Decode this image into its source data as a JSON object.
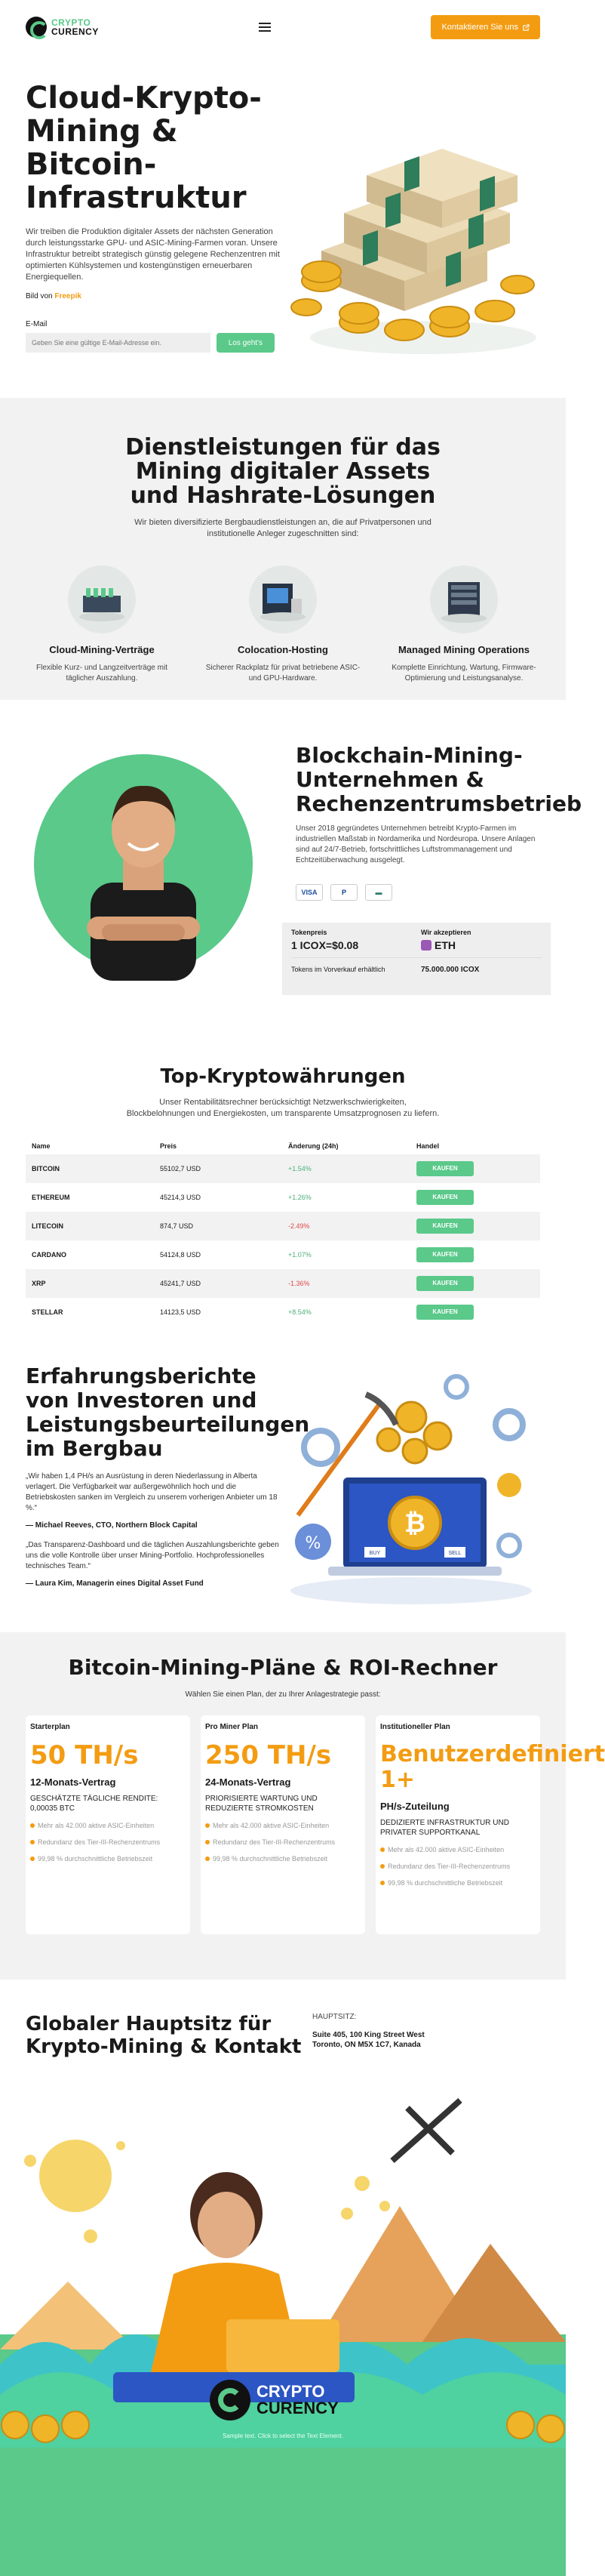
{
  "header": {
    "logo_line1": "CRYPTO",
    "logo_line2": "CURENCY",
    "cta_label": "Kontaktieren Sie uns",
    "cta_icon": "external-link-icon"
  },
  "hero": {
    "title": "Cloud-Krypto-Mining & Bitcoin-Infrastruktur",
    "description": "Wir treiben die Produktion digitaler Assets der nächsten Generation durch leistungsstarke GPU- und ASIC-Mining-Farmen voran. Unsere Infrastruktur betreibt strategisch günstig gelegene Rechenzentren mit optimierten Kühlsystemen und kostengünstigen erneuerbaren Energiequellen.",
    "credit_prefix": "Bild von ",
    "credit_link": "Freepik",
    "email_label": "E-Mail",
    "email_placeholder": "Geben Sie eine gültige E-Mail-Adresse ein.",
    "submit_label": "Los geht's"
  },
  "services": {
    "title": "Dienstleistungen für das Mining digitaler Assets und Hashrate-Lösungen",
    "subtitle": "Wir bieten diversifizierte Bergbaudienstleistungen an, die auf Privatpersonen und institutionelle Anleger zugeschnitten sind:",
    "items": [
      {
        "title": "Cloud-Mining-Verträge",
        "text": "Flexible Kurz- und Langzeitverträge mit täglicher Auszahlung."
      },
      {
        "title": "Colocation-Hosting",
        "text": "Sicherer Rackplatz für privat betriebene ASIC- und GPU-Hardware."
      },
      {
        "title": "Managed Mining Operations",
        "text": "Komplette Einrichtung, Wartung, Firmware-Optimierung und Leistungsanalyse."
      }
    ]
  },
  "blockchain": {
    "title": "Blockchain-Mining-Unternehmen & Rechenzentrumsbetrieb",
    "text": "Unser 2018 gegründetes Unternehmen betreibt Krypto-Farmen im industriellen Maßstab in Nordamerika und Nordeuropa. Unsere Anlagen sind auf 24/7-Betrieb, fortschrittliches Luftstrommanagement und Echtzeitüberwachung ausgelegt.",
    "payments": [
      "VISA",
      "P",
      "▬"
    ],
    "token_price_label": "Tokenpreis",
    "token_price_value": "1 ICOX=$0.08",
    "accepted_label": "Wir akzeptieren",
    "accepted_value": "ETH",
    "presale_label": "Tokens im Vorverkauf erhältlich",
    "presale_value": "75.000.000 ICOX"
  },
  "crypto": {
    "title": "Top-Kryptowährungen",
    "subtitle": "Unser Rentabilitätsrechner berücksichtigt Netzwerkschwierigkeiten, Blockbelohnungen und Energiekosten, um transparente Umsatzprognosen zu liefern.",
    "columns": [
      "Name",
      "Preis",
      "Änderung (24h)",
      "Handel"
    ],
    "buy_label": "KAUFEN",
    "rows": [
      {
        "name": "BITCOIN",
        "price": "55102,7 USD",
        "change": "+1.54%",
        "dir": "pos"
      },
      {
        "name": "ETHEREUM",
        "price": "45214,3 USD",
        "change": "+1.26%",
        "dir": "pos"
      },
      {
        "name": "LITECOIN",
        "price": "874,7 USD",
        "change": "-2.49%",
        "dir": "neg"
      },
      {
        "name": "CARDANO",
        "price": "54124,8 USD",
        "change": "+1.07%",
        "dir": "pos"
      },
      {
        "name": "XRP",
        "price": "45241,7 USD",
        "change": "-1.36%",
        "dir": "neg"
      },
      {
        "name": "STELLAR",
        "price": "14123,5 USD",
        "change": "+8.54%",
        "dir": "pos"
      }
    ]
  },
  "testimonials": {
    "title": "Erfahrungsberichte von Investoren und Leistungsbeurteilungen im Bergbau",
    "items": [
      {
        "quote": "„Wir haben 1,4 PH/s an Ausrüstung in deren Niederlassung in Alberta verlagert. Die Verfügbarkeit war außergewöhnlich hoch und die Betriebskosten sanken im Vergleich zu unserem vorherigen Anbieter um 18 %.“",
        "author": "— Michael Reeves, CTO, Northern Block Capital"
      },
      {
        "quote": "„Das Transparenz-Dashboard und die täglichen Auszahlungsberichte geben uns die volle Kontrolle über unser Mining-Portfolio. Hochprofessionelles technisches Team.“",
        "author": "— Laura Kim, Managerin eines Digital Asset Fund"
      }
    ],
    "art_buy": "BUY",
    "art_sell": "SELL"
  },
  "plans": {
    "title": "Bitcoin-Mining-Pläne & ROI-Rechner",
    "subtitle": "Wählen Sie einen Plan, der zu Ihrer Anlagestrategie passt:",
    "items": [
      {
        "name": "Starterplan",
        "big": "50 TH/s",
        "term": "12-Monats-Vertrag",
        "desc": "GESCHÄTZTE TÄGLICHE RENDITE: 0,00035 BTC",
        "features": [
          "Mehr als 42.000 aktive ASIC-Einheiten",
          "Redundanz des Tier-III-Rechenzentrums",
          "99,98 % durchschnittliche Betriebszeit"
        ]
      },
      {
        "name": "Pro Miner Plan",
        "big": "250 TH/s",
        "term": "24-Monats-Vertrag",
        "desc": "PRIORISIERTE WARTUNG UND REDUZIERTE STROMKOSTEN",
        "features": [
          "Mehr als 42.000 aktive ASIC-Einheiten",
          "Redundanz des Tier-III-Rechenzentrums",
          "99,98 % durchschnittliche Betriebszeit"
        ]
      },
      {
        "name": "Institutioneller Plan",
        "big": "Benutzerdefiniert 1+",
        "term": "PH/s-Zuteilung",
        "desc": "DEDIZIERTE INFRASTRUKTUR UND PRIVATER SUPPORTKANAL",
        "features": [
          "Mehr als 42.000 aktive ASIC-Einheiten",
          "Redundanz des Tier-III-Rechenzentrums",
          "99,98 % durchschnittliche Betriebszeit"
        ]
      }
    ]
  },
  "hq": {
    "title": "Globaler Hauptsitz für Krypto-Mining & Kontakt",
    "address_label": "HAUPTSITZ:",
    "address_line1": "Suite 405, 100 King Street West",
    "address_line2": "Toronto, ON M5X 1C7, Kanada"
  },
  "footer": {
    "logo_line1": "CRYPTO",
    "logo_line2": "CURENCY",
    "note": "Sample text. Click to select the Text Element."
  }
}
